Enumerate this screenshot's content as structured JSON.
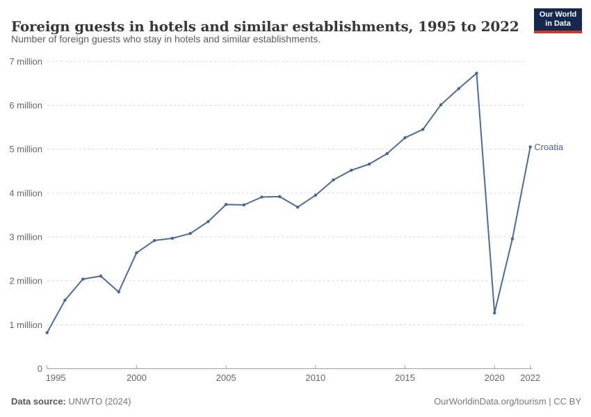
{
  "header": {
    "title": "Foreign guests in hotels and similar establishments, 1995 to 2022",
    "subtitle": "Number of foreign guests who stay in hotels and similar establishments.",
    "logo": {
      "line1": "Our World",
      "line2": "in Data"
    }
  },
  "colors": {
    "line": "#4c6a9c",
    "marker": "#4464a0",
    "entity_label": "#44639b",
    "grid": "#dadada",
    "axis": "#9e9e9e",
    "tick_label": "#666666",
    "logo_bg": "#15294e",
    "logo_strip": "#d0342c"
  },
  "chart_data": {
    "type": "line",
    "title": "Foreign guests in hotels and similar establishments, 1995 to 2022",
    "xlabel": "",
    "ylabel": "",
    "unit": "million",
    "xlim": [
      1995,
      2022
    ],
    "ylim": [
      0,
      7
    ],
    "grid": "horizontal-dashed",
    "legend_position": "end-of-line-label",
    "x_ticks": [
      1995,
      2000,
      2005,
      2010,
      2015,
      2020,
      2022
    ],
    "y_ticks": [
      {
        "value": 0,
        "label": "0"
      },
      {
        "value": 1,
        "label": "1 million"
      },
      {
        "value": 2,
        "label": "2 million"
      },
      {
        "value": 3,
        "label": "3 million"
      },
      {
        "value": 4,
        "label": "4 million"
      },
      {
        "value": 5,
        "label": "5 million"
      },
      {
        "value": 6,
        "label": "6 million"
      },
      {
        "value": 7,
        "label": "7 million"
      }
    ],
    "series": [
      {
        "name": "Croatia",
        "x": [
          1995,
          1996,
          1997,
          1998,
          1999,
          2000,
          2001,
          2002,
          2003,
          2004,
          2005,
          2006,
          2007,
          2008,
          2009,
          2010,
          2011,
          2012,
          2013,
          2014,
          2015,
          2016,
          2017,
          2018,
          2019,
          2020,
          2021,
          2022
        ],
        "values": [
          0.82,
          1.56,
          2.04,
          2.11,
          1.75,
          2.64,
          2.92,
          2.97,
          3.08,
          3.35,
          3.74,
          3.73,
          3.91,
          3.92,
          3.68,
          3.95,
          4.3,
          4.52,
          4.66,
          4.9,
          5.26,
          5.45,
          6.01,
          6.38,
          6.73,
          1.27,
          2.96,
          5.05
        ]
      }
    ]
  },
  "footer": {
    "source_label": "Data source:",
    "source_value": " UNWTO (2024)",
    "credit": "OurWorldinData.org/tourism | CC BY"
  }
}
